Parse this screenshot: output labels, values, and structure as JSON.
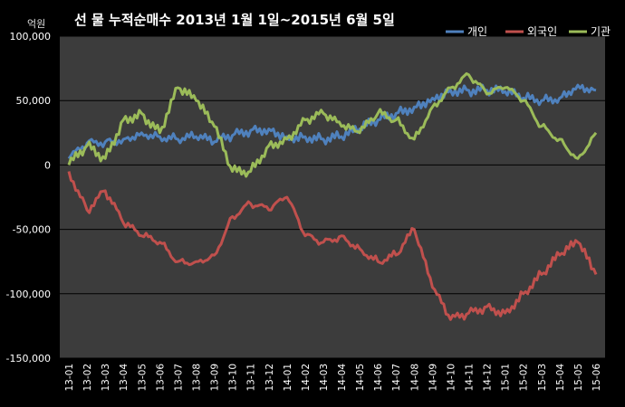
{
  "chart_data": {
    "type": "line",
    "title": "선 물 누적순매수 2013년 1월 1일~2015년 6월 5일",
    "unit_label": "억원",
    "ylim": [
      -150000,
      100000
    ],
    "yticks": [
      100000,
      50000,
      0,
      -50000,
      -100000,
      -150000
    ],
    "ytick_labels": [
      "100,000",
      "50,000",
      "0",
      "-50,000",
      "-100,000",
      "-150,000"
    ],
    "categories": [
      "13-01",
      "13-02",
      "13-03",
      "13-04",
      "13-05",
      "13-06",
      "13-07",
      "13-08",
      "13-09",
      "13-10",
      "13-11",
      "13-12",
      "14-01",
      "14-02",
      "14-03",
      "14-04",
      "14-05",
      "14-06",
      "14-07",
      "14-08",
      "14-09",
      "14-10",
      "14-11",
      "14-12",
      "15-01",
      "15-02",
      "15-03",
      "15-04",
      "15-05",
      "15-06"
    ],
    "grid": true,
    "legend_position": "top-right",
    "series": [
      {
        "name": "개인",
        "color": "#4F81BD",
        "values": [
          5000,
          17000,
          18000,
          20000,
          25000,
          22000,
          20000,
          22000,
          18000,
          23000,
          27000,
          28000,
          22000,
          22000,
          20000,
          22000,
          28000,
          35000,
          40000,
          45000,
          52000,
          58000,
          58000,
          58000,
          57000,
          52000,
          50000,
          52000,
          62000,
          58000
        ]
      },
      {
        "name": "외국인",
        "color": "#C0504D",
        "values": [
          -5000,
          -35000,
          -20000,
          -45000,
          -55000,
          -60000,
          -75000,
          -75000,
          -70000,
          -40000,
          -30000,
          -35000,
          -25000,
          -55000,
          -60000,
          -55000,
          -65000,
          -75000,
          -70000,
          -50000,
          -95000,
          -120000,
          -115000,
          -110000,
          -115000,
          -100000,
          -85000,
          -70000,
          -60000,
          -85000
        ]
      },
      {
        "name": "기관",
        "color": "#9BBB59",
        "values": [
          0,
          15000,
          5000,
          35000,
          40000,
          25000,
          60000,
          50000,
          30000,
          -5000,
          -5000,
          15000,
          20000,
          35000,
          40000,
          30000,
          25000,
          40000,
          35000,
          20000,
          45000,
          60000,
          70000,
          55000,
          60000,
          50000,
          30000,
          20000,
          5000,
          25000
        ]
      }
    ]
  }
}
